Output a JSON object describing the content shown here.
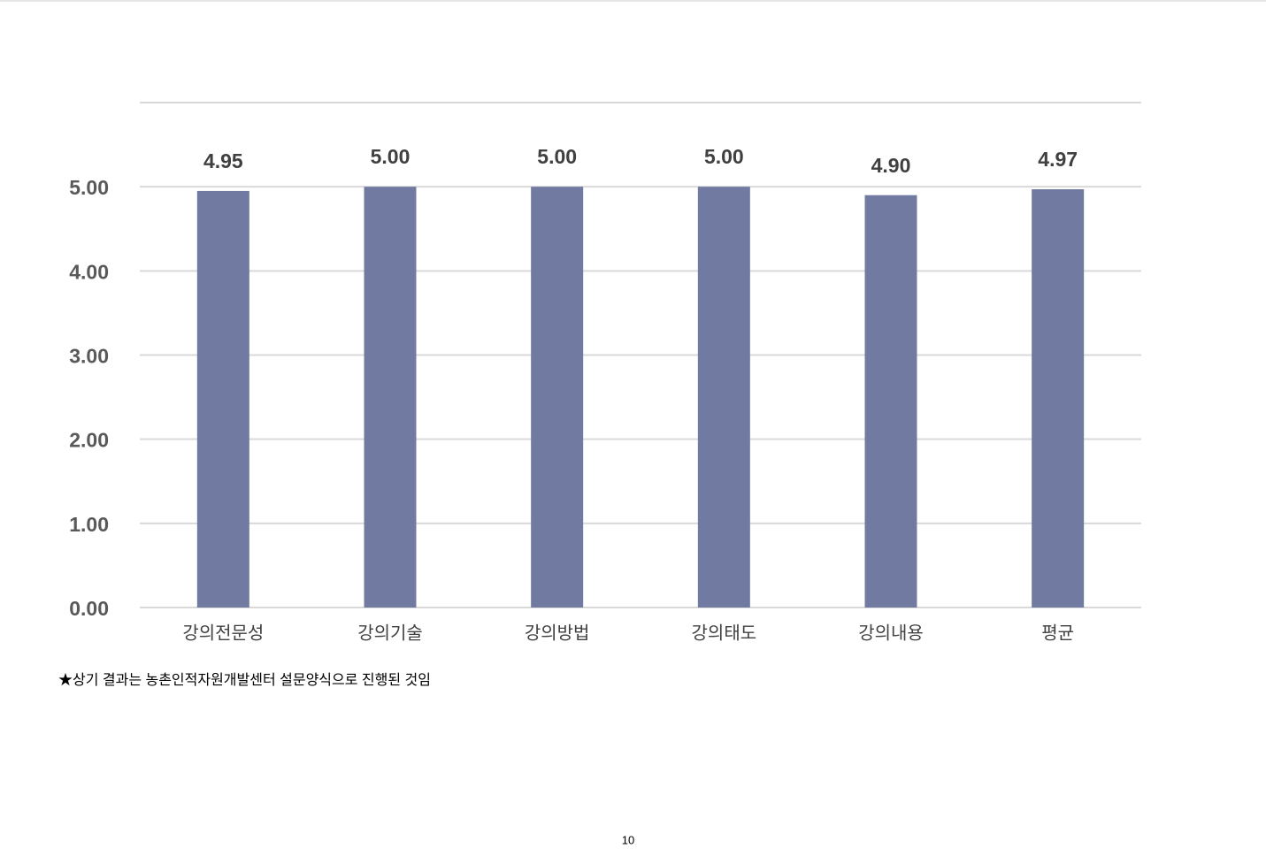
{
  "chart_data": {
    "type": "bar",
    "categories": [
      "강의전문성",
      "강의기술",
      "강의방법",
      "강의태도",
      "강의내용",
      "평균"
    ],
    "values": [
      4.95,
      5.0,
      5.0,
      5.0,
      4.9,
      4.97
    ],
    "value_labels": [
      "4.95",
      "5.00",
      "5.00",
      "5.00",
      "4.90",
      "4.97"
    ],
    "color": "#717ba2",
    "ylim": [
      0,
      6
    ],
    "yticks": [
      {
        "value": 0,
        "label": "0.00"
      },
      {
        "value": 1,
        "label": "1.00"
      },
      {
        "value": 2,
        "label": "2.00"
      },
      {
        "value": 3,
        "label": "3.00"
      },
      {
        "value": 4,
        "label": "4.00"
      },
      {
        "value": 5,
        "label": "5.00"
      }
    ],
    "grid": true
  },
  "footnote": "★상기 결과는 농촌인적자원개발센터 설문양식으로 진행된 것임",
  "page_number": "10"
}
